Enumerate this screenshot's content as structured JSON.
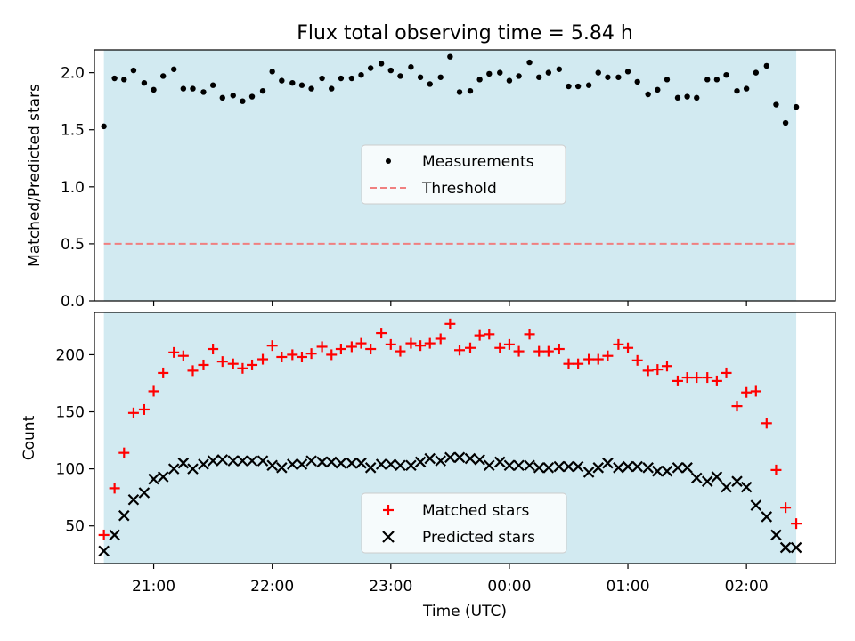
{
  "chart_data": [
    {
      "type": "scatter",
      "title": "Flux total observing time = 5.84 h",
      "xlabel": "",
      "ylabel": "Matched/Predicted stars",
      "xlim_hours": [
        20.5,
        26.75
      ],
      "ylim": [
        0,
        2.2
      ],
      "yticks": [
        "0.0",
        "0.5",
        "1.0",
        "1.5",
        "2.0"
      ],
      "shade_hours": [
        20.58,
        26.42
      ],
      "shade_color": "#add8e6",
      "threshold": {
        "name": "Threshold",
        "value": 0.5,
        "color": "#f08080"
      },
      "legend": [
        "Measurements",
        "Threshold"
      ],
      "legend_position": "center",
      "series": [
        {
          "name": "Measurements",
          "color": "#000000",
          "x": [
            20.58,
            20.67,
            20.75,
            20.83,
            20.92,
            21.0,
            21.08,
            21.17,
            21.25,
            21.33,
            21.42,
            21.5,
            21.58,
            21.67,
            21.75,
            21.83,
            21.92,
            22.0,
            22.08,
            22.17,
            22.25,
            22.33,
            22.42,
            22.5,
            22.58,
            22.67,
            22.75,
            22.83,
            22.92,
            23.0,
            23.08,
            23.17,
            23.25,
            23.33,
            23.42,
            23.5,
            23.58,
            23.67,
            23.75,
            23.83,
            23.92,
            24.0,
            24.08,
            24.17,
            24.25,
            24.33,
            24.42,
            24.5,
            24.58,
            24.67,
            24.75,
            24.83,
            24.92,
            25.0,
            25.08,
            25.17,
            25.25,
            25.33,
            25.42,
            25.5,
            25.58,
            25.67,
            25.75,
            25.83,
            25.92,
            26.0,
            26.08,
            26.17,
            26.25,
            26.33,
            26.42
          ],
          "values": [
            1.53,
            1.95,
            1.94,
            2.02,
            1.91,
            1.85,
            1.97,
            2.03,
            1.86,
            1.86,
            1.83,
            1.89,
            1.78,
            1.8,
            1.75,
            1.79,
            1.84,
            2.01,
            1.93,
            1.91,
            1.89,
            1.86,
            1.95,
            1.86,
            1.95,
            1.95,
            1.98,
            2.04,
            2.08,
            2.02,
            1.97,
            2.05,
            1.96,
            1.9,
            1.96,
            2.14,
            1.83,
            1.84,
            1.94,
            1.99,
            2.0,
            1.93,
            1.97,
            2.09,
            1.96,
            2.0,
            2.03,
            1.88,
            1.88,
            1.89,
            2.0,
            1.96,
            1.96,
            2.01,
            1.92,
            1.81,
            1.85,
            1.94,
            1.78,
            1.79,
            1.78,
            1.94,
            1.94,
            1.98,
            1.84,
            1.86,
            2.0,
            2.06,
            1.72,
            1.56,
            1.7
          ]
        }
      ]
    },
    {
      "type": "scatter",
      "title": "",
      "xlabel": "Time (UTC)",
      "ylabel": "Count",
      "xlim_hours": [
        20.5,
        26.75
      ],
      "ylim": [
        17,
        237
      ],
      "yticks": [
        "50",
        "100",
        "150",
        "200"
      ],
      "xticks": [
        "21:00",
        "22:00",
        "23:00",
        "00:00",
        "01:00",
        "02:00"
      ],
      "shade_hours": [
        20.58,
        26.42
      ],
      "shade_color": "#add8e6",
      "legend": [
        "Matched stars",
        "Predicted stars"
      ],
      "legend_position": "lower center",
      "series": [
        {
          "name": "Matched stars",
          "color": "#ff0000",
          "marker": "plus",
          "x": [
            20.58,
            20.67,
            20.75,
            20.83,
            20.92,
            21.0,
            21.08,
            21.17,
            21.25,
            21.33,
            21.42,
            21.5,
            21.58,
            21.67,
            21.75,
            21.83,
            21.92,
            22.0,
            22.08,
            22.17,
            22.25,
            22.33,
            22.42,
            22.5,
            22.58,
            22.67,
            22.75,
            22.83,
            22.92,
            23.0,
            23.08,
            23.17,
            23.25,
            23.33,
            23.42,
            23.5,
            23.58,
            23.67,
            23.75,
            23.83,
            23.92,
            24.0,
            24.08,
            24.17,
            24.25,
            24.33,
            24.42,
            24.5,
            24.58,
            24.67,
            24.75,
            24.83,
            24.92,
            25.0,
            25.08,
            25.17,
            25.25,
            25.33,
            25.42,
            25.5,
            25.58,
            25.67,
            25.75,
            25.83,
            25.92,
            26.0,
            26.08,
            26.17,
            26.25,
            26.33,
            26.42
          ],
          "values": [
            42,
            83,
            114,
            149,
            152,
            168,
            184,
            202,
            199,
            186,
            191,
            205,
            194,
            192,
            188,
            191,
            196,
            208,
            198,
            200,
            198,
            201,
            207,
            200,
            205,
            207,
            210,
            205,
            219,
            209,
            203,
            210,
            208,
            210,
            214,
            227,
            204,
            206,
            217,
            218,
            206,
            209,
            203,
            218,
            203,
            203,
            205,
            192,
            192,
            196,
            196,
            199,
            209,
            206,
            195,
            186,
            187,
            190,
            177,
            180,
            180,
            180,
            177,
            184,
            155,
            167,
            168,
            140,
            99,
            66,
            52
          ]
        },
        {
          "name": "Predicted stars",
          "color": "#000000",
          "marker": "x",
          "x": [
            20.58,
            20.67,
            20.75,
            20.83,
            20.92,
            21.0,
            21.08,
            21.17,
            21.25,
            21.33,
            21.42,
            21.5,
            21.58,
            21.67,
            21.75,
            21.83,
            21.92,
            22.0,
            22.08,
            22.17,
            22.25,
            22.33,
            22.42,
            22.5,
            22.58,
            22.67,
            22.75,
            22.83,
            22.92,
            23.0,
            23.08,
            23.17,
            23.25,
            23.33,
            23.42,
            23.5,
            23.58,
            23.67,
            23.75,
            23.83,
            23.92,
            24.0,
            24.08,
            24.17,
            24.25,
            24.33,
            24.42,
            24.5,
            24.58,
            24.67,
            24.75,
            24.83,
            24.92,
            25.0,
            25.08,
            25.17,
            25.25,
            25.33,
            25.42,
            25.5,
            25.58,
            25.67,
            25.75,
            25.83,
            25.92,
            26.0,
            26.08,
            26.17,
            26.25,
            26.33,
            26.42
          ],
          "values": [
            28,
            42,
            59,
            73,
            79,
            91,
            93,
            100,
            105,
            100,
            104,
            107,
            108,
            107,
            107,
            107,
            107,
            103,
            101,
            104,
            104,
            107,
            106,
            106,
            105,
            105,
            105,
            101,
            104,
            104,
            103,
            103,
            106,
            109,
            107,
            110,
            110,
            109,
            108,
            103,
            106,
            103,
            103,
            103,
            101,
            101,
            102,
            102,
            102,
            97,
            101,
            105,
            101,
            102,
            102,
            101,
            98,
            98,
            101,
            101,
            92,
            89,
            93,
            84,
            89,
            84,
            68,
            58,
            42,
            31,
            31
          ]
        }
      ]
    }
  ]
}
